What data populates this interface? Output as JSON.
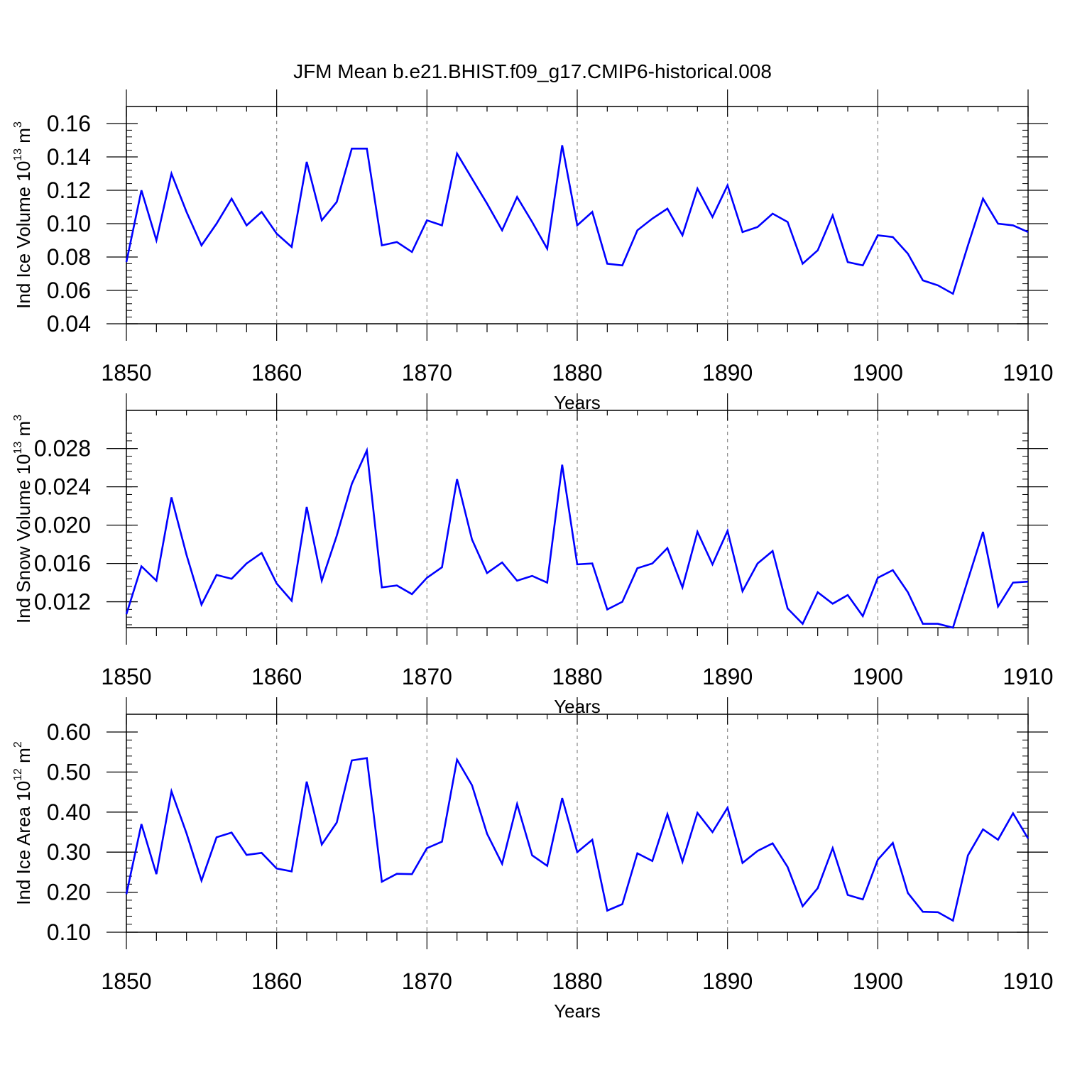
{
  "title": "JFM Mean b.e21.BHIST.f09_g17.CMIP6-historical.008",
  "line_color": "#0000ff",
  "chart_data": [
    {
      "type": "line",
      "ylabel": "Ind Ice Volume 10",
      "ylabel_exp": "13",
      "ylabel_unit": " m",
      "ylabel_unit_exp": "3",
      "xlabel": "Years",
      "xlim": [
        1850,
        1910
      ],
      "ylim": [
        0.04,
        0.16
      ],
      "xticks": [
        1850,
        1860,
        1870,
        1880,
        1890,
        1900,
        1910
      ],
      "xtick_labels": [
        "1850",
        "1860",
        "1870",
        "1880",
        "1890",
        "1900",
        "1910"
      ],
      "yticks": [
        0.04,
        0.06,
        0.08,
        0.1,
        0.12,
        0.14,
        0.16
      ],
      "ytick_labels": [
        "0.04",
        "0.06",
        "0.08",
        "0.10",
        "0.12",
        "0.14",
        "0.16"
      ],
      "grid": "vertical-dashed",
      "x_start": 1850,
      "values": [
        0.077,
        0.12,
        0.09,
        0.13,
        0.107,
        0.087,
        0.1,
        0.115,
        0.099,
        0.107,
        0.094,
        0.086,
        0.137,
        0.102,
        0.113,
        0.145,
        0.145,
        0.087,
        0.089,
        0.083,
        0.102,
        0.099,
        0.142,
        0.127,
        0.112,
        0.096,
        0.116,
        0.101,
        0.085,
        0.147,
        0.099,
        0.107,
        0.076,
        0.075,
        0.096,
        0.103,
        0.109,
        0.093,
        0.121,
        0.104,
        0.123,
        0.095,
        0.098,
        0.106,
        0.101,
        0.076,
        0.084,
        0.105,
        0.077,
        0.075,
        0.093,
        0.092,
        0.082,
        0.066,
        0.063,
        0.058,
        0.087,
        0.115,
        0.1,
        0.099,
        0.095
      ]
    },
    {
      "type": "line",
      "ylabel": "Ind Snow Volume 10",
      "ylabel_exp": "13",
      "ylabel_unit": " m",
      "ylabel_unit_exp": "3",
      "xlabel": "Years",
      "xlim": [
        1850,
        1910
      ],
      "ylim": [
        0.0093,
        0.0302
      ],
      "xticks": [
        1850,
        1860,
        1870,
        1880,
        1890,
        1900,
        1910
      ],
      "xtick_labels": [
        "1850",
        "1860",
        "1870",
        "1880",
        "1890",
        "1900",
        "1910"
      ],
      "yticks": [
        0.012,
        0.016,
        0.02,
        0.024,
        0.028
      ],
      "ytick_labels": [
        "0.012",
        "0.016",
        "0.020",
        "0.024",
        "0.028"
      ],
      "grid": "vertical-dashed",
      "x_start": 1850,
      "values": [
        0.0107,
        0.0157,
        0.0142,
        0.0229,
        0.0169,
        0.0117,
        0.0148,
        0.0144,
        0.016,
        0.0171,
        0.0139,
        0.0121,
        0.0219,
        0.0142,
        0.0189,
        0.0243,
        0.0278,
        0.0135,
        0.0137,
        0.0128,
        0.0145,
        0.0156,
        0.0248,
        0.0185,
        0.015,
        0.0161,
        0.0142,
        0.0147,
        0.014,
        0.0263,
        0.0159,
        0.016,
        0.0112,
        0.012,
        0.0155,
        0.016,
        0.0176,
        0.0135,
        0.0193,
        0.0159,
        0.0194,
        0.0131,
        0.016,
        0.0173,
        0.0113,
        0.0097,
        0.013,
        0.0118,
        0.0127,
        0.0105,
        0.0145,
        0.0153,
        0.013,
        0.0097,
        0.0097,
        0.0093,
        0.0143,
        0.0193,
        0.0115,
        0.014,
        0.0141
      ]
    },
    {
      "type": "line",
      "ylabel": "Ind Ice Area 10",
      "ylabel_exp": "12",
      "ylabel_unit": " m",
      "ylabel_unit_exp": "2",
      "xlabel": "Years",
      "xlim": [
        1850,
        1910
      ],
      "ylim": [
        0.1,
        0.6
      ],
      "xticks": [
        1850,
        1860,
        1870,
        1880,
        1890,
        1900,
        1910
      ],
      "xtick_labels": [
        "1850",
        "1860",
        "1870",
        "1880",
        "1890",
        "1900",
        "1910"
      ],
      "yticks": [
        0.1,
        0.2,
        0.3,
        0.4,
        0.5,
        0.6
      ],
      "ytick_labels": [
        "0.10",
        "0.20",
        "0.30",
        "0.40",
        "0.50",
        "0.60"
      ],
      "grid": "vertical-dashed",
      "x_start": 1850,
      "values": [
        0.195,
        0.37,
        0.245,
        0.452,
        0.347,
        0.229,
        0.337,
        0.349,
        0.293,
        0.298,
        0.259,
        0.252,
        0.476,
        0.319,
        0.374,
        0.529,
        0.535,
        0.226,
        0.246,
        0.245,
        0.31,
        0.326,
        0.531,
        0.467,
        0.346,
        0.271,
        0.42,
        0.292,
        0.266,
        0.435,
        0.3,
        0.331,
        0.154,
        0.17,
        0.297,
        0.278,
        0.395,
        0.276,
        0.398,
        0.35,
        0.411,
        0.273,
        0.303,
        0.322,
        0.263,
        0.165,
        0.21,
        0.31,
        0.193,
        0.182,
        0.281,
        0.323,
        0.198,
        0.151,
        0.15,
        0.129,
        0.292,
        0.357,
        0.331,
        0.397,
        0.334
      ]
    }
  ]
}
